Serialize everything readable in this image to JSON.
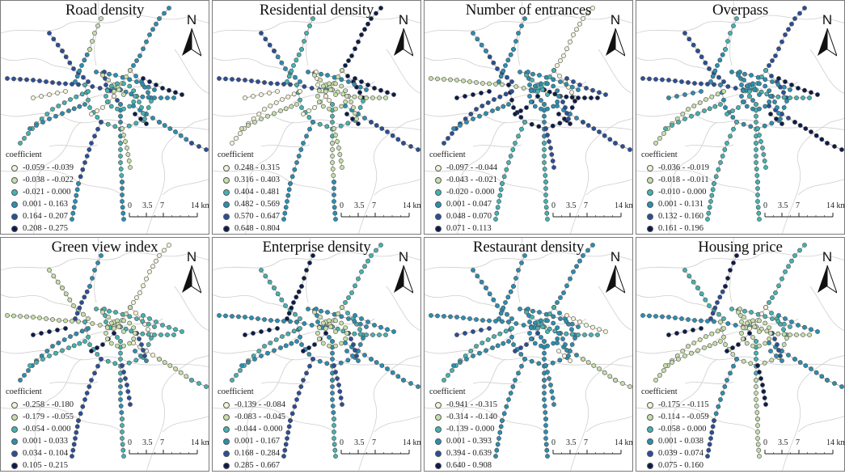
{
  "colors": [
    "#f5f3d7",
    "#c8dfab",
    "#45b3b0",
    "#2a8fb3",
    "#2a4f9a",
    "#0c1c4c"
  ],
  "legend_title": "coefficient",
  "scale": {
    "ticks": [
      "0",
      "3.5",
      "7",
      "14 km"
    ]
  },
  "north_label": "N",
  "panels": [
    {
      "title": "Road density",
      "classes": [
        "-0.059 - -0.039",
        "-0.038 - -0.022",
        "-0.021 - 0.000",
        "0.001 - 0.163",
        "0.164 - 0.207",
        "0.208 - 0.275"
      ],
      "center": 2,
      "lines": [
        3,
        3,
        4,
        3,
        3,
        2,
        3,
        2,
        3,
        4,
        3,
        2,
        3,
        1,
        1,
        4,
        4,
        3,
        3,
        4,
        5,
        5,
        4,
        3,
        3,
        1,
        1,
        0,
        0,
        2
      ]
    },
    {
      "title": "Residential density",
      "classes": [
        "0.248 - 0.315",
        "0.316 - 0.403",
        "0.404 - 0.481",
        "0.482 - 0.569",
        "0.570 - 0.647",
        "0.648 - 0.804"
      ],
      "center": 1,
      "lines": [
        5,
        5,
        4,
        3,
        3,
        2,
        1,
        0,
        1,
        0,
        2,
        1,
        3,
        1,
        1,
        3,
        4,
        3,
        4,
        4,
        5,
        5,
        3,
        3,
        2,
        2,
        1,
        0,
        0,
        1
      ]
    },
    {
      "title": "Number of entrances",
      "classes": [
        "-0.097 - -0.044",
        "-0.043 - -0.021",
        "-0.020 - 0.000",
        "0.001 - 0.047",
        "0.048 - 0.070",
        "0.071 - 0.113"
      ],
      "center": 3,
      "lines": [
        0,
        0,
        1,
        2,
        3,
        5,
        5,
        4,
        3,
        3,
        3,
        2,
        2,
        2,
        2,
        4,
        3,
        3,
        4,
        4,
        4,
        5,
        2,
        2,
        3,
        3,
        4,
        5,
        5,
        4
      ]
    },
    {
      "title": "Overpass",
      "classes": [
        "-0.036 - -0.019",
        "-0.018 - -0.011",
        "-0.010 - 0.000",
        "0.001 - 0.131",
        "0.132 - 0.160",
        "0.161 - 0.196"
      ],
      "center": 3,
      "lines": [
        4,
        4,
        4,
        3,
        3,
        3,
        2,
        1,
        2,
        3,
        2,
        2,
        2,
        2,
        3,
        4,
        4,
        4,
        5,
        5,
        5,
        5,
        2,
        2,
        3,
        2,
        2,
        3,
        2,
        3
      ]
    },
    {
      "title": "Green view index",
      "classes": [
        "-0.258 - -0.180",
        "-0.179 - -0.055",
        "-0.054 - 0.000",
        "0.001 - 0.033",
        "0.034 - 0.104",
        "0.105 - 0.215"
      ],
      "center": 1,
      "lines": [
        0,
        0,
        1,
        1,
        2,
        2,
        2,
        3,
        2,
        2,
        2,
        3,
        2,
        1,
        1,
        1,
        1,
        0,
        1,
        2,
        2,
        3,
        4,
        4,
        4,
        3,
        4,
        5,
        5,
        4
      ]
    },
    {
      "title": "Enterprise density",
      "classes": [
        "-0.139 - -0.084",
        "-0.083 - -0.045",
        "-0.044 - 0.000",
        "0.001 - 0.167",
        "0.168 - 0.284",
        "0.285 - 0.667"
      ],
      "center": 1,
      "lines": [
        2,
        2,
        3,
        3,
        3,
        3,
        2,
        2,
        3,
        3,
        3,
        3,
        2,
        1,
        1,
        2,
        2,
        3,
        3,
        3,
        3,
        3,
        4,
        4,
        5,
        5,
        4,
        5,
        5,
        4
      ]
    },
    {
      "title": "Restaurant density",
      "classes": [
        "-0.941 - -0.315",
        "-0.314 - -0.140",
        "-0.139 - 0.000",
        "0.001 - 0.393",
        "0.394 - 0.639",
        "0.640 - 0.908"
      ],
      "center": 3,
      "lines": [
        3,
        3,
        3,
        3,
        3,
        3,
        2,
        2,
        3,
        3,
        3,
        3,
        3,
        2,
        2,
        3,
        3,
        3,
        1,
        1,
        0,
        0,
        3,
        3,
        3,
        3,
        3,
        4,
        4,
        3
      ]
    },
    {
      "title": "Housing price",
      "classes": [
        "-0.175 - -0.115",
        "-0.114 - -0.059",
        "-0.058 - 0.000",
        "0.001 - 0.038",
        "0.039 - 0.074",
        "0.075 - 0.160"
      ],
      "center": 1,
      "lines": [
        2,
        2,
        3,
        2,
        2,
        1,
        1,
        1,
        1,
        1,
        2,
        1,
        1,
        0,
        1,
        2,
        2,
        3,
        3,
        3,
        3,
        3,
        3,
        4,
        4,
        5,
        5,
        5,
        5,
        4
      ]
    }
  ]
}
